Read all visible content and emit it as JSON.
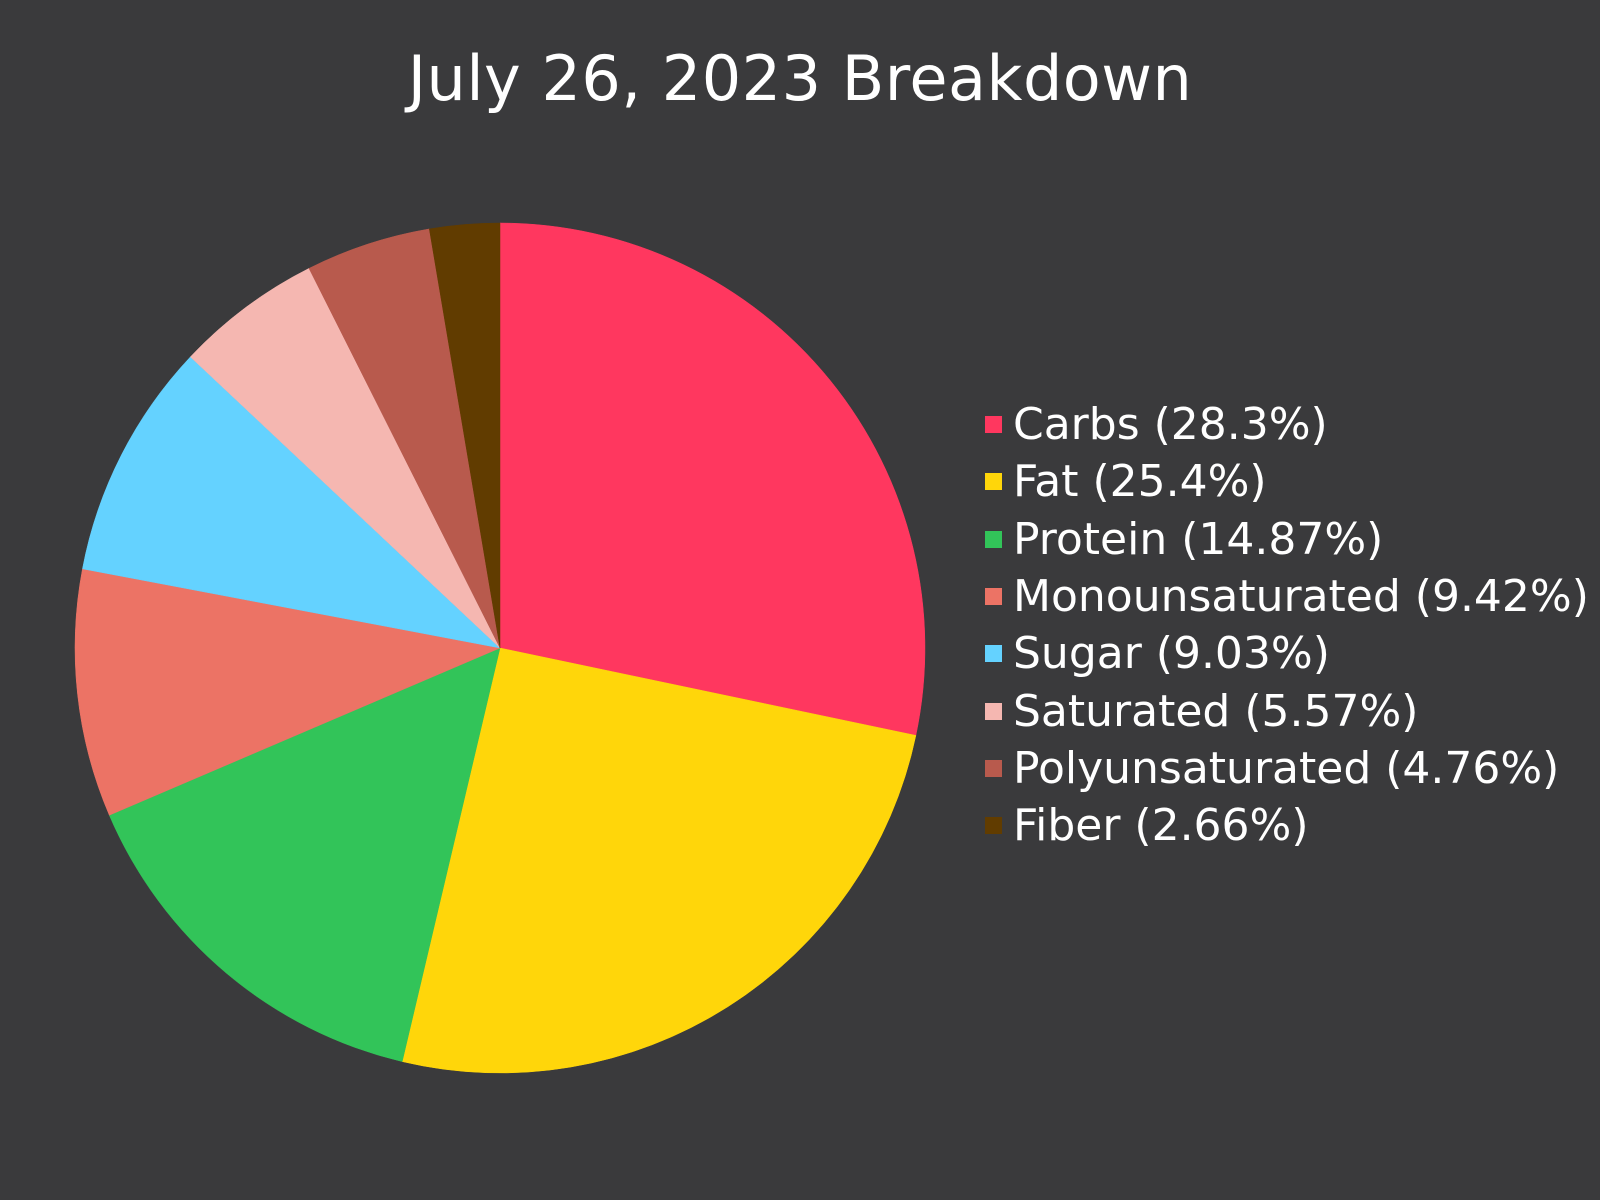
{
  "chart_data": {
    "type": "pie",
    "title": "July 26, 2023 Breakdown",
    "legend_position": "right",
    "start_angle_deg": 0,
    "direction": "clockwise",
    "slices": [
      {
        "label": "Carbs",
        "value": 28.3,
        "legend_label": "Carbs (28.3%)",
        "color": "#ff375f"
      },
      {
        "label": "Fat",
        "value": 25.4,
        "legend_label": "Fat (25.4%)",
        "color": "#ffd60a"
      },
      {
        "label": "Protein",
        "value": 14.87,
        "legend_label": "Protein (14.87%)",
        "color": "#32c459"
      },
      {
        "label": "Monounsaturated",
        "value": 9.42,
        "legend_label": "Monounsaturated (9.42%)",
        "color": "#ec7365"
      },
      {
        "label": "Sugar",
        "value": 9.03,
        "legend_label": "Sugar (9.03%)",
        "color": "#64d2ff"
      },
      {
        "label": "Saturated",
        "value": 5.57,
        "legend_label": "Saturated (5.57%)",
        "color": "#f5b7b1"
      },
      {
        "label": "Polyunsaturated",
        "value": 4.76,
        "legend_label": "Polyunsaturated (4.76%)",
        "color": "#b85a4d"
      },
      {
        "label": "Fiber",
        "value": 2.66,
        "legend_label": "Fiber (2.66%)",
        "color": "#613c00"
      }
    ]
  },
  "colors": {
    "background": "#3a3a3c",
    "text": "#ffffff"
  }
}
